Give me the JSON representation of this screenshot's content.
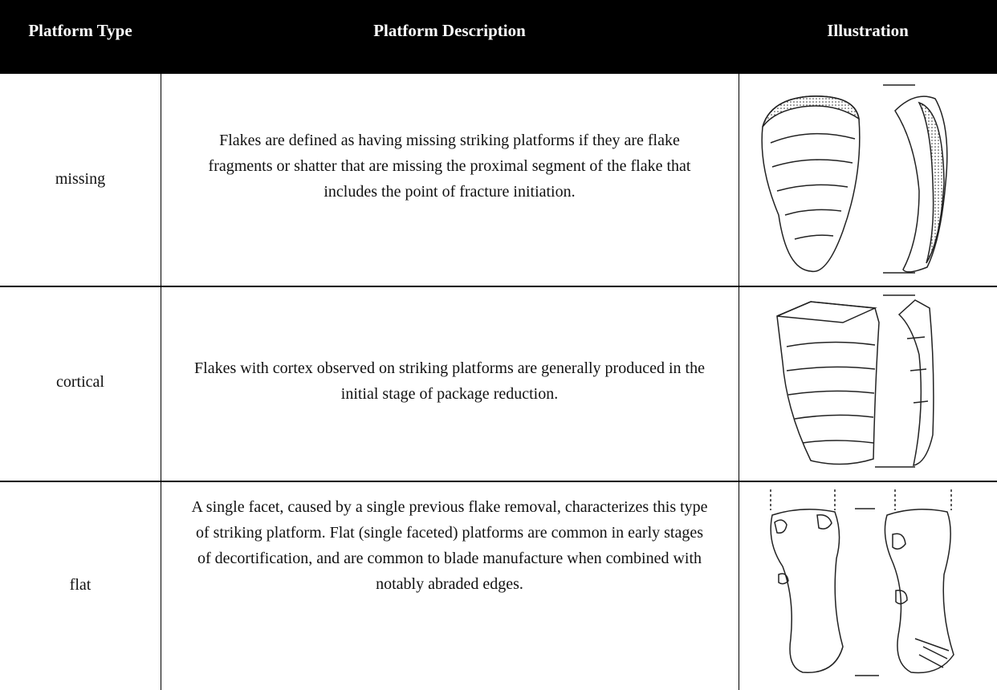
{
  "table": {
    "columns": [
      "Platform Type",
      "Platform Description",
      "Illustration"
    ],
    "rows": [
      [
        "missing",
        "Flakes are defined as having missing striking platforms if they are flake fragments or shatter that are missing the proximal segment of the flake that includes the point of fracture initiation."
      ],
      [
        "cortical",
        "Flakes with cortex observed on striking platforms are generally produced in the initial stage of package reduction."
      ],
      [
        "flat",
        "A single facet, caused by a single previous flake removal, characterizes this type of striking platform. Flat (single faceted) platforms are common in early stages of decortification, and are common to blade manufacture when combined with notably abraded edges."
      ]
    ]
  }
}
